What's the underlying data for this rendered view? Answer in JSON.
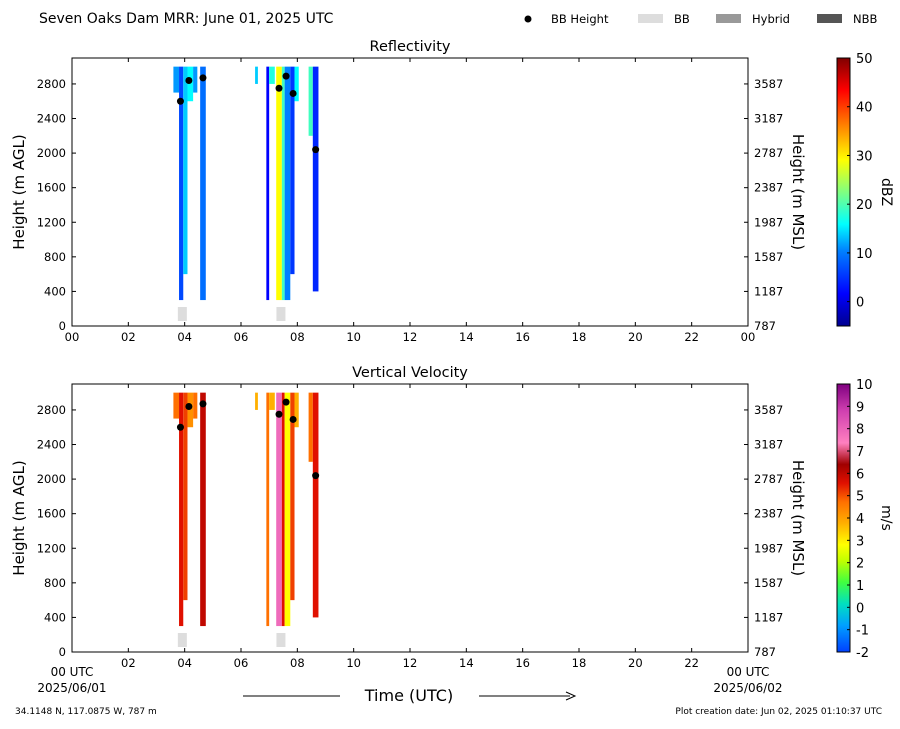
{
  "header": {
    "title": "Seven Oaks Dam MRR:  June 01, 2025 UTC",
    "legend": [
      {
        "label": "BB Height",
        "kind": "dot",
        "color": "#000000"
      },
      {
        "label": "BB",
        "kind": "swatch",
        "color": "#dddddd"
      },
      {
        "label": "Hybrid",
        "kind": "swatch",
        "color": "#999999"
      },
      {
        "label": "NBB",
        "kind": "swatch",
        "color": "#555555"
      }
    ]
  },
  "footer": {
    "location": "34.1148 N, 117.0875 W, 787 m",
    "creation": "Plot creation date: Jun 02, 2025 01:10:37 UTC",
    "xlabel": "Time (UTC)",
    "start_tick": "00 UTC",
    "end_tick": "00 UTC",
    "start_date": "2025/06/01",
    "end_date": "2025/06/02"
  },
  "chart_data": [
    {
      "type": "heatmap",
      "title": "Reflectivity",
      "ylabel": "Height (m AGL)",
      "ylabel_right": "Height (m MSL)",
      "colorbar_label": "dBZ",
      "x_ticks": [
        "00",
        "02",
        "04",
        "06",
        "08",
        "10",
        "12",
        "14",
        "16",
        "18",
        "20",
        "22",
        "00"
      ],
      "y_ticks": [
        0,
        400,
        800,
        1200,
        1600,
        2000,
        2400,
        2800
      ],
      "y_ticks_right": [
        "787",
        "1187",
        "1587",
        "1987",
        "2387",
        "2787",
        "3187",
        "3587"
      ],
      "xlim": [
        0,
        24
      ],
      "ylim": [
        0,
        3100
      ],
      "colorbar_ticks": [
        0,
        10,
        20,
        30,
        40,
        50
      ],
      "colorbar_range": [
        -5,
        50
      ],
      "bb_height_points": [
        [
          3.85,
          2600
        ],
        [
          4.15,
          2840
        ],
        [
          4.65,
          2870
        ],
        [
          7.35,
          2750
        ],
        [
          7.6,
          2890
        ],
        [
          7.85,
          2690
        ],
        [
          8.65,
          2040
        ]
      ],
      "bb_markers": [
        [
          3.9,
          "BB"
        ],
        [
          7.4,
          "BB"
        ]
      ],
      "columns": [
        {
          "t0": 3.6,
          "t1": 3.8,
          "h0": 2700,
          "h1": 3000,
          "v": 8
        },
        {
          "t0": 3.8,
          "t1": 3.95,
          "h0": 300,
          "h1": 3000,
          "v": 4
        },
        {
          "t0": 3.95,
          "t1": 4.1,
          "h0": 600,
          "h1": 3000,
          "v": 10
        },
        {
          "t0": 4.1,
          "t1": 4.3,
          "h0": 2600,
          "h1": 3000,
          "v": 12
        },
        {
          "t0": 4.3,
          "t1": 4.45,
          "h0": 2700,
          "h1": 3000,
          "v": 8
        },
        {
          "t0": 4.55,
          "t1": 4.75,
          "h0": 300,
          "h1": 3000,
          "v": 6
        },
        {
          "t0": 6.5,
          "t1": 6.6,
          "h0": 2800,
          "h1": 3000,
          "v": 10
        },
        {
          "t0": 6.9,
          "t1": 7.0,
          "h0": 300,
          "h1": 3000,
          "v": 0
        },
        {
          "t0": 7.0,
          "t1": 7.2,
          "h0": 2800,
          "h1": 3000,
          "v": 14
        },
        {
          "t0": 7.25,
          "t1": 7.45,
          "h0": 300,
          "h1": 3000,
          "v": 28
        },
        {
          "t0": 7.45,
          "t1": 7.55,
          "h0": 300,
          "h1": 3000,
          "v": 16
        },
        {
          "t0": 7.55,
          "t1": 7.75,
          "h0": 300,
          "h1": 3000,
          "v": 7
        },
        {
          "t0": 7.75,
          "t1": 7.9,
          "h0": 600,
          "h1": 3000,
          "v": 3
        },
        {
          "t0": 7.9,
          "t1": 8.05,
          "h0": 2600,
          "h1": 3000,
          "v": 12
        },
        {
          "t0": 8.4,
          "t1": 8.55,
          "h0": 2200,
          "h1": 3000,
          "v": 16
        },
        {
          "t0": 8.55,
          "t1": 8.75,
          "h0": 400,
          "h1": 3000,
          "v": 2
        }
      ]
    },
    {
      "type": "heatmap",
      "title": "Vertical Velocity",
      "ylabel": "Height (m AGL)",
      "ylabel_right": "Height (m MSL)",
      "colorbar_label": "m/s",
      "x_ticks": [
        "00",
        "02",
        "04",
        "06",
        "08",
        "10",
        "12",
        "14",
        "16",
        "18",
        "20",
        "22",
        "00"
      ],
      "y_ticks": [
        0,
        400,
        800,
        1200,
        1600,
        2000,
        2400,
        2800
      ],
      "y_ticks_right": [
        "787",
        "1187",
        "1587",
        "1987",
        "2387",
        "2787",
        "3187",
        "3587"
      ],
      "xlim": [
        0,
        24
      ],
      "ylim": [
        0,
        3100
      ],
      "colorbar_ticks": [
        -2,
        -1,
        0,
        1,
        2,
        3,
        4,
        5,
        6,
        7,
        8,
        9,
        10
      ],
      "colorbar_range": [
        -2,
        10
      ],
      "bb_height_points": [
        [
          3.85,
          2600
        ],
        [
          4.15,
          2840
        ],
        [
          4.65,
          2870
        ],
        [
          7.35,
          2750
        ],
        [
          7.6,
          2890
        ],
        [
          7.85,
          2690
        ],
        [
          8.65,
          2040
        ]
      ],
      "bb_markers": [
        [
          3.9,
          "BB"
        ],
        [
          7.4,
          "BB"
        ]
      ],
      "columns": [
        {
          "t0": 3.6,
          "t1": 3.8,
          "h0": 2700,
          "h1": 3000,
          "v": 5
        },
        {
          "t0": 3.8,
          "t1": 3.95,
          "h0": 300,
          "h1": 3000,
          "v": 6
        },
        {
          "t0": 3.95,
          "t1": 4.1,
          "h0": 600,
          "h1": 3000,
          "v": 5.5
        },
        {
          "t0": 4.1,
          "t1": 4.3,
          "h0": 2600,
          "h1": 3000,
          "v": 4.5
        },
        {
          "t0": 4.3,
          "t1": 4.45,
          "h0": 2700,
          "h1": 3000,
          "v": 5
        },
        {
          "t0": 4.55,
          "t1": 4.75,
          "h0": 300,
          "h1": 3000,
          "v": 6.5
        },
        {
          "t0": 6.5,
          "t1": 6.6,
          "h0": 2800,
          "h1": 3000,
          "v": 4
        },
        {
          "t0": 6.9,
          "t1": 7.0,
          "h0": 300,
          "h1": 3000,
          "v": 5
        },
        {
          "t0": 7.0,
          "t1": 7.2,
          "h0": 2800,
          "h1": 3000,
          "v": 4
        },
        {
          "t0": 7.25,
          "t1": 7.45,
          "h0": 300,
          "h1": 3000,
          "v": 8
        },
        {
          "t0": 7.45,
          "t1": 7.55,
          "h0": 300,
          "h1": 3000,
          "v": 6
        },
        {
          "t0": 7.55,
          "t1": 7.75,
          "h0": 300,
          "h1": 3000,
          "v": 3
        },
        {
          "t0": 7.75,
          "t1": 7.9,
          "h0": 600,
          "h1": 3000,
          "v": 5.5
        },
        {
          "t0": 7.9,
          "t1": 8.05,
          "h0": 2600,
          "h1": 3000,
          "v": 4
        },
        {
          "t0": 8.4,
          "t1": 8.55,
          "h0": 2200,
          "h1": 3000,
          "v": 5
        },
        {
          "t0": 8.55,
          "t1": 8.75,
          "h0": 400,
          "h1": 3000,
          "v": 6
        }
      ]
    }
  ]
}
